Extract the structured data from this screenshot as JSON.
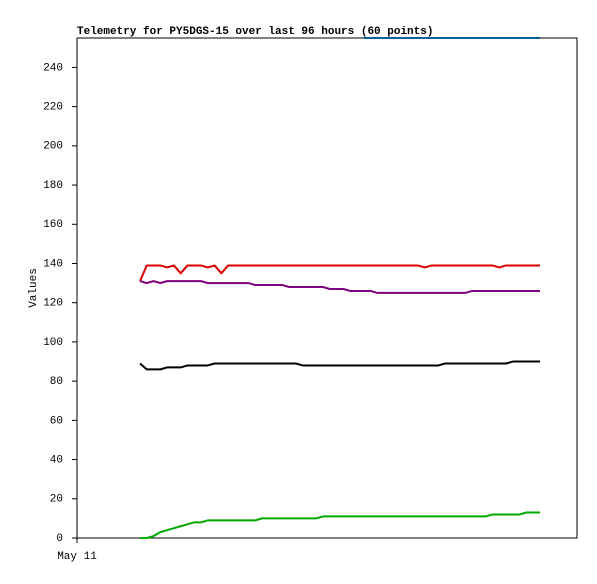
{
  "chart_data": {
    "type": "line",
    "title": "Telemetry for PY5DGS-15 over last 96 hours (60 points)",
    "y_label": "Values",
    "x_tick_label": "May 11",
    "ylim": [
      0,
      255
    ],
    "yticks": [
      0,
      20,
      40,
      60,
      80,
      100,
      120,
      140,
      160,
      180,
      200,
      220,
      240
    ],
    "grid": false,
    "series": [
      {
        "color": "#dd0000",
        "values": [
          131,
          139,
          139,
          139,
          138,
          139,
          135,
          139,
          139,
          139,
          138,
          139,
          135,
          139,
          139,
          139,
          139,
          139,
          139,
          139,
          139,
          139,
          139,
          139,
          139,
          139,
          139,
          139,
          139,
          139,
          139,
          139,
          139,
          139,
          139,
          139,
          139,
          139,
          139,
          139,
          139,
          139,
          138,
          139,
          139,
          139,
          139,
          139,
          139,
          139,
          139,
          139,
          139,
          138,
          139,
          139,
          139,
          139,
          139,
          139
        ]
      },
      {
        "color": "#800080",
        "values": [
          131,
          130,
          131,
          130,
          131,
          131,
          131,
          131,
          131,
          131,
          130,
          130,
          130,
          130,
          130,
          130,
          130,
          129,
          129,
          129,
          129,
          129,
          128,
          128,
          128,
          128,
          128,
          128,
          127,
          127,
          127,
          126,
          126,
          126,
          126,
          125,
          125,
          125,
          125,
          125,
          125,
          125,
          125,
          125,
          125,
          125,
          125,
          125,
          125,
          126,
          126,
          126,
          126,
          126,
          126,
          126,
          126,
          126,
          126,
          126
        ]
      },
      {
        "color": "#000000",
        "values": [
          89,
          86,
          86,
          86,
          87,
          87,
          87,
          88,
          88,
          88,
          88,
          89,
          89,
          89,
          89,
          89,
          89,
          89,
          89,
          89,
          89,
          89,
          89,
          89,
          88,
          88,
          88,
          88,
          88,
          88,
          88,
          88,
          88,
          88,
          88,
          88,
          88,
          88,
          88,
          88,
          88,
          88,
          88,
          88,
          88,
          89,
          89,
          89,
          89,
          89,
          89,
          89,
          89,
          89,
          89,
          90,
          90,
          90,
          90,
          90
        ]
      },
      {
        "color": "#00aa00",
        "values": [
          0,
          0,
          1,
          3,
          4,
          5,
          6,
          7,
          8,
          8,
          9,
          9,
          9,
          9,
          9,
          9,
          9,
          9,
          10,
          10,
          10,
          10,
          10,
          10,
          10,
          10,
          10,
          11,
          11,
          11,
          11,
          11,
          11,
          11,
          11,
          11,
          11,
          11,
          11,
          11,
          11,
          11,
          11,
          11,
          11,
          11,
          11,
          11,
          11,
          11,
          11,
          11,
          12,
          12,
          12,
          12,
          12,
          13,
          13,
          13
        ]
      },
      {
        "color": "#0060a0",
        "values": [
          null,
          null,
          null,
          null,
          null,
          null,
          null,
          null,
          null,
          null,
          null,
          null,
          null,
          null,
          null,
          null,
          null,
          null,
          null,
          null,
          null,
          null,
          null,
          null,
          null,
          null,
          null,
          null,
          null,
          null,
          null,
          null,
          null,
          255,
          255,
          255,
          255,
          255,
          255,
          255,
          255,
          255,
          255,
          255,
          255,
          255,
          255,
          255,
          255,
          255,
          255,
          255,
          255,
          255,
          255,
          255,
          255,
          255,
          255,
          255
        ]
      }
    ]
  }
}
